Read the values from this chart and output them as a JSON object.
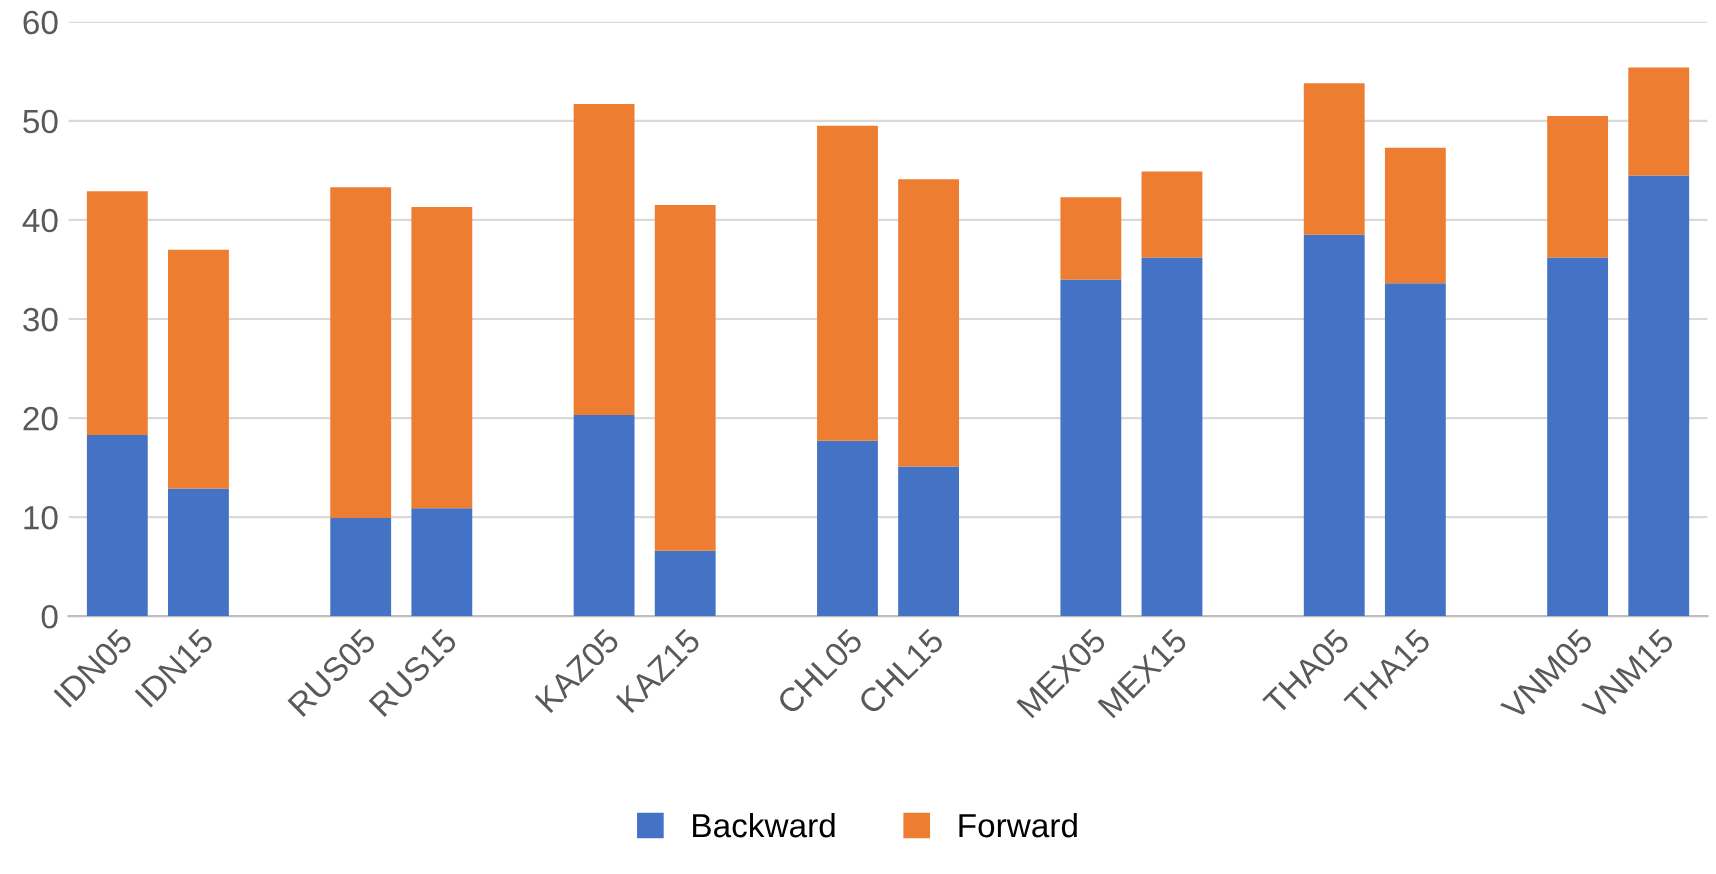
{
  "chart_data": {
    "type": "bar",
    "stacked": true,
    "categories": [
      "IDN05",
      "IDN15",
      null,
      "RUS05",
      "RUS15",
      null,
      "KAZ05",
      "KAZ15",
      null,
      "CHL05",
      "CHL15",
      null,
      "MEX05",
      "MEX15",
      null,
      "THA05",
      "THA15",
      null,
      "VNM05",
      "VNM15"
    ],
    "series": [
      {
        "name": "Backward",
        "color": "#4472c4",
        "values": [
          18.3,
          12.9,
          null,
          9.9,
          10.9,
          null,
          20.3,
          6.6,
          null,
          17.7,
          15.1,
          null,
          34.0,
          36.2,
          null,
          38.5,
          33.6,
          null,
          36.2,
          44.5
        ]
      },
      {
        "name": "Forward",
        "color": "#ed7d31",
        "values": [
          24.6,
          24.1,
          null,
          33.4,
          30.4,
          null,
          31.4,
          34.9,
          null,
          31.8,
          29.0,
          null,
          8.3,
          8.7,
          null,
          15.3,
          13.7,
          null,
          14.3,
          10.9
        ]
      }
    ],
    "ylim": [
      0,
      60
    ],
    "yticks": [
      0,
      10,
      20,
      30,
      40,
      50,
      60
    ],
    "grid": "y",
    "legend": "bottom"
  }
}
